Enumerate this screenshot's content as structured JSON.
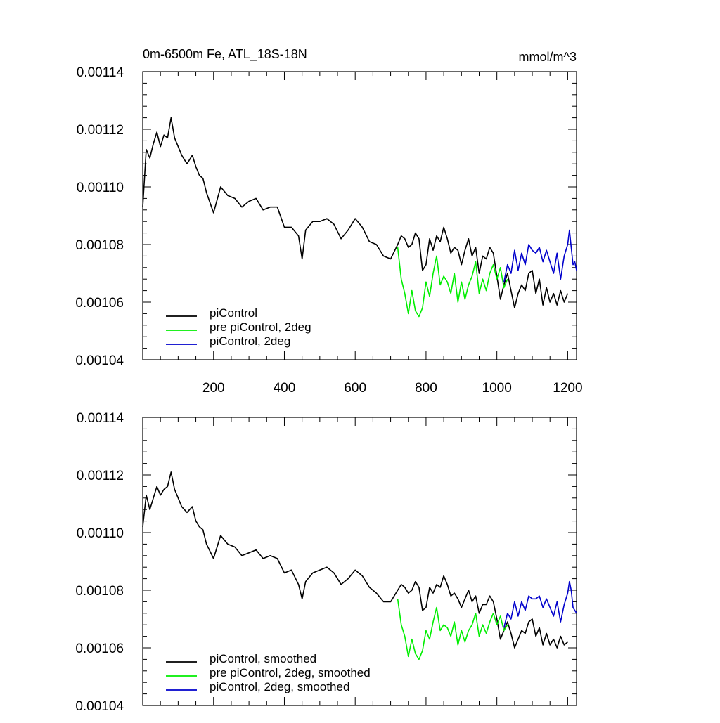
{
  "colors": {
    "piControl": "#000000",
    "pre_piControl_2deg": "#00ee00",
    "piControl_2deg": "#0000cc"
  },
  "chart_data": [
    {
      "type": "line",
      "title_left": "0m-6500m Fe, ATL_18S-18N",
      "title_right": "mmol/m^3",
      "xlim": [
        0,
        1225
      ],
      "ylim": [
        0.00104,
        0.00114
      ],
      "yticks": [
        "0.00104",
        "0.00106",
        "0.00108",
        "0.00110",
        "0.00112",
        "0.00114"
      ],
      "xticks": [
        "200",
        "400",
        "600",
        "800",
        "1000",
        "1200"
      ],
      "grid": false,
      "legend_position": "lower-left",
      "series": [
        {
          "name": "piControl",
          "color": "#000000",
          "x": [
            0,
            10,
            20,
            30,
            40,
            50,
            60,
            70,
            80,
            90,
            100,
            110,
            125,
            140,
            150,
            160,
            170,
            180,
            200,
            220,
            240,
            260,
            280,
            300,
            320,
            340,
            360,
            380,
            400,
            420,
            440,
            450,
            460,
            480,
            500,
            520,
            540,
            560,
            580,
            600,
            620,
            640,
            660,
            680,
            700,
            720,
            730,
            740,
            750,
            760,
            770,
            780,
            790,
            800,
            810,
            820,
            830,
            840,
            850,
            860,
            870,
            880,
            890,
            900,
            910,
            920,
            930,
            940,
            950,
            960,
            970,
            980,
            990,
            1000,
            1010,
            1020,
            1030,
            1040,
            1050,
            1060,
            1070,
            1080,
            1090,
            1100,
            1110,
            1120,
            1130,
            1140,
            1150,
            1160,
            1170,
            1180,
            1190,
            1200
          ],
          "y": [
            0.001093,
            0.001113,
            0.00111,
            0.001115,
            0.001119,
            0.001114,
            0.001118,
            0.001117,
            0.001124,
            0.001117,
            0.001114,
            0.001111,
            0.001108,
            0.001111,
            0.001107,
            0.001104,
            0.001103,
            0.001098,
            0.001091,
            0.0011,
            0.001097,
            0.001096,
            0.001093,
            0.001095,
            0.001096,
            0.001092,
            0.001093,
            0.001093,
            0.001086,
            0.001086,
            0.001083,
            0.001075,
            0.001085,
            0.001088,
            0.001088,
            0.001089,
            0.001087,
            0.001082,
            0.001085,
            0.001089,
            0.001086,
            0.001081,
            0.00108,
            0.001076,
            0.001075,
            0.00108,
            0.001083,
            0.001082,
            0.001079,
            0.00108,
            0.001084,
            0.001082,
            0.001071,
            0.001073,
            0.001082,
            0.001078,
            0.001083,
            0.001081,
            0.001086,
            0.001082,
            0.001077,
            0.001079,
            0.001078,
            0.001073,
            0.001078,
            0.001082,
            0.001076,
            0.001079,
            0.00107,
            0.001076,
            0.001075,
            0.001079,
            0.001077,
            0.001069,
            0.001061,
            0.001066,
            0.00107,
            0.001064,
            0.001058,
            0.001063,
            0.001066,
            0.001064,
            0.00107,
            0.001071,
            0.001063,
            0.001068,
            0.001059,
            0.001065,
            0.00106,
            0.001063,
            0.001059,
            0.001064,
            0.00106,
            0.001063
          ]
        },
        {
          "name": "pre piControl, 2deg",
          "color": "#00ee00",
          "x": [
            720,
            730,
            740,
            750,
            760,
            770,
            780,
            790,
            800,
            810,
            820,
            830,
            840,
            850,
            860,
            870,
            880,
            890,
            900,
            910,
            920,
            930,
            940,
            950,
            960,
            970,
            980,
            990,
            1000,
            1010,
            1020,
            1030
          ],
          "y": [
            0.001079,
            0.001068,
            0.001063,
            0.001056,
            0.001064,
            0.001057,
            0.001055,
            0.001058,
            0.001067,
            0.001062,
            0.00107,
            0.001076,
            0.001066,
            0.001069,
            0.001067,
            0.001063,
            0.00107,
            0.00106,
            0.001067,
            0.001061,
            0.001066,
            0.001069,
            0.001074,
            0.001063,
            0.001068,
            0.001064,
            0.00107,
            0.001073,
            0.001068,
            0.001072,
            0.001065,
            0.001068
          ]
        },
        {
          "name": "piControl, 2deg",
          "color": "#0000cc",
          "x": [
            1020,
            1030,
            1040,
            1050,
            1060,
            1070,
            1080,
            1090,
            1100,
            1110,
            1120,
            1130,
            1140,
            1150,
            1160,
            1170,
            1180,
            1190,
            1200,
            1205,
            1210,
            1215,
            1220,
            1225
          ],
          "y": [
            0.001067,
            0.001073,
            0.00107,
            0.001078,
            0.001071,
            0.001077,
            0.001073,
            0.00108,
            0.001078,
            0.001077,
            0.001079,
            0.001074,
            0.001078,
            0.001074,
            0.00107,
            0.001077,
            0.001068,
            0.001076,
            0.00108,
            0.001085,
            0.001079,
            0.001073,
            0.001074,
            0.001071
          ]
        }
      ]
    },
    {
      "type": "line",
      "xlim": [
        0,
        1225
      ],
      "ylim": [
        0.00104,
        0.00114
      ],
      "yticks": [
        "0.00104",
        "0.00106",
        "0.00108",
        "0.00110",
        "0.00112",
        "0.00114"
      ],
      "grid": false,
      "legend_position": "lower-left",
      "series": [
        {
          "name": "piControl, smoothed",
          "color": "#000000",
          "x": [
            0,
            10,
            20,
            30,
            40,
            50,
            60,
            70,
            80,
            90,
            100,
            110,
            125,
            140,
            150,
            160,
            170,
            180,
            200,
            220,
            240,
            260,
            280,
            300,
            320,
            340,
            360,
            380,
            400,
            420,
            440,
            450,
            460,
            480,
            500,
            520,
            540,
            560,
            580,
            600,
            620,
            640,
            660,
            680,
            700,
            720,
            730,
            740,
            750,
            760,
            770,
            780,
            790,
            800,
            810,
            820,
            830,
            840,
            850,
            860,
            870,
            880,
            890,
            900,
            910,
            920,
            930,
            940,
            950,
            960,
            970,
            980,
            990,
            1000,
            1010,
            1020,
            1030,
            1040,
            1050,
            1060,
            1070,
            1080,
            1090,
            1100,
            1110,
            1120,
            1130,
            1140,
            1150,
            1160,
            1170,
            1180,
            1190,
            1200
          ],
          "y": [
            0.001102,
            0.001113,
            0.001108,
            0.001112,
            0.001116,
            0.001113,
            0.001115,
            0.001116,
            0.001121,
            0.001115,
            0.001112,
            0.001109,
            0.001107,
            0.001109,
            0.001104,
            0.001102,
            0.001101,
            0.001096,
            0.001091,
            0.001099,
            0.001096,
            0.001095,
            0.001092,
            0.001093,
            0.001094,
            0.001091,
            0.001092,
            0.001091,
            0.001086,
            0.001087,
            0.001082,
            0.001077,
            0.001083,
            0.001086,
            0.001087,
            0.001088,
            0.001086,
            0.001082,
            0.001084,
            0.001087,
            0.001085,
            0.001081,
            0.001079,
            0.001076,
            0.001076,
            0.00108,
            0.001082,
            0.001081,
            0.001079,
            0.00108,
            0.001083,
            0.001081,
            0.001073,
            0.001074,
            0.001081,
            0.001079,
            0.001082,
            0.001081,
            0.001085,
            0.001082,
            0.001078,
            0.001079,
            0.001077,
            0.001074,
            0.001077,
            0.00108,
            0.001076,
            0.001078,
            0.001072,
            0.001075,
            0.001075,
            0.001078,
            0.001076,
            0.00107,
            0.001063,
            0.001066,
            0.001069,
            0.001065,
            0.00106,
            0.001063,
            0.001066,
            0.001065,
            0.001069,
            0.00107,
            0.001064,
            0.001067,
            0.001061,
            0.001065,
            0.001061,
            0.001063,
            0.00106,
            0.001064,
            0.001061,
            0.001062
          ]
        },
        {
          "name": "pre piControl, 2deg, smoothed",
          "color": "#00ee00",
          "x": [
            720,
            730,
            740,
            750,
            760,
            770,
            780,
            790,
            800,
            810,
            820,
            830,
            840,
            850,
            860,
            870,
            880,
            890,
            900,
            910,
            920,
            930,
            940,
            950,
            960,
            970,
            980,
            990,
            1000,
            1010,
            1020,
            1030
          ],
          "y": [
            0.001077,
            0.001068,
            0.001064,
            0.001057,
            0.001063,
            0.001058,
            0.001056,
            0.001059,
            0.001066,
            0.001063,
            0.001069,
            0.001074,
            0.001066,
            0.001068,
            0.001067,
            0.001064,
            0.001069,
            0.001061,
            0.001066,
            0.001062,
            0.001066,
            0.001068,
            0.001072,
            0.001064,
            0.001068,
            0.001065,
            0.001069,
            0.001072,
            0.001068,
            0.001071,
            0.001066,
            0.001068
          ]
        },
        {
          "name": "piControl, 2deg, smoothed",
          "color": "#0000cc",
          "x": [
            1020,
            1030,
            1040,
            1050,
            1060,
            1070,
            1080,
            1090,
            1100,
            1110,
            1120,
            1130,
            1140,
            1150,
            1160,
            1170,
            1180,
            1190,
            1200,
            1205,
            1210,
            1215,
            1220,
            1225
          ],
          "y": [
            0.001067,
            0.001072,
            0.00107,
            0.001076,
            0.001071,
            0.001076,
            0.001073,
            0.001078,
            0.001077,
            0.001077,
            0.001078,
            0.001074,
            0.001077,
            0.001074,
            0.001071,
            0.001076,
            0.001069,
            0.001075,
            0.001079,
            0.001083,
            0.00108,
            0.001074,
            0.001073,
            0.001072
          ]
        }
      ]
    }
  ]
}
